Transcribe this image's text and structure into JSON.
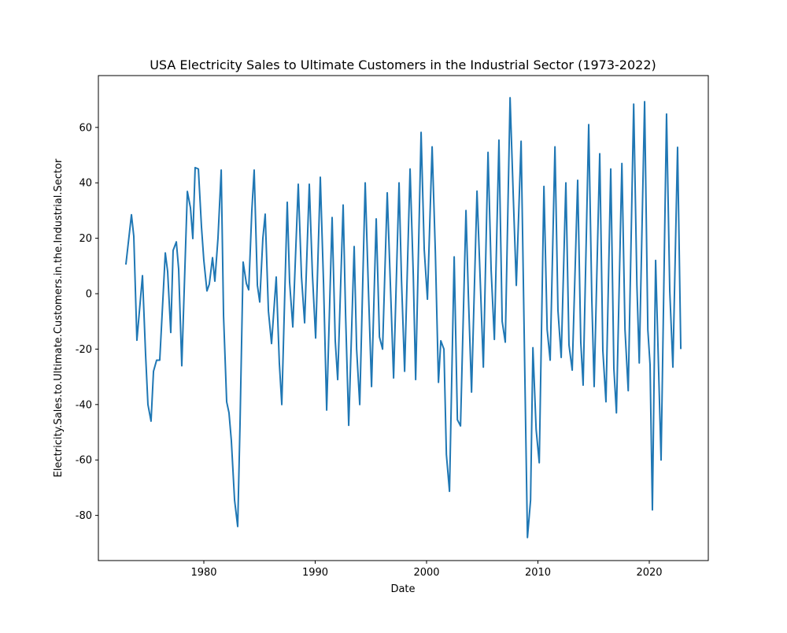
{
  "chart_data": {
    "type": "line",
    "title": "USA Electricity Sales to Ultimate Customers in the Industrial Sector (1973-2022)",
    "x_label": "Date",
    "y_label": "Electricity.Sales.to.Ultimate.Customers.in.the.Industrial.Sector",
    "xlim": [
      1970.53,
      2025.3
    ],
    "ylim": [
      -96.3,
      78.7
    ],
    "xticks": [
      1980,
      1990,
      2000,
      2010,
      2020
    ],
    "yticks": [
      -80,
      -60,
      -40,
      -20,
      0,
      20,
      40,
      60
    ],
    "grid": false,
    "series": [
      {
        "name": "Electricity.Sales.to.Ultimate.Customers.in.the.Industrial.Sector",
        "color": "#1f77b4",
        "x": [
          1973.0,
          1973.5,
          1973.71,
          1973.99,
          1974.49,
          1974.77,
          1974.98,
          1975.26,
          1975.48,
          1975.76,
          1976.04,
          1976.54,
          1976.75,
          1977.03,
          1977.24,
          1977.53,
          1977.74,
          1978.02,
          1978.52,
          1978.8,
          1979.01,
          1979.22,
          1979.51,
          1979.79,
          1980.0,
          1980.28,
          1980.49,
          1980.78,
          1980.99,
          1981.27,
          1981.56,
          1981.77,
          1982.05,
          1982.26,
          1982.47,
          1982.76,
          1983.04,
          1983.25,
          1983.53,
          1983.82,
          1984.03,
          1984.31,
          1984.52,
          1984.81,
          1985.02,
          1985.3,
          1985.51,
          1985.8,
          1986.08,
          1986.5,
          1986.78,
          1987.0,
          1987.49,
          1987.7,
          1987.99,
          1988.48,
          1988.77,
          1989.05,
          1989.47,
          1989.75,
          1990.04,
          1990.46,
          1990.75,
          1991.03,
          1991.52,
          1991.8,
          1992.02,
          1992.51,
          1992.73,
          1993.01,
          1993.5,
          1993.72,
          1994.0,
          1994.49,
          1994.78,
          1995.06,
          1995.48,
          1995.77,
          1996.05,
          1996.47,
          1996.76,
          1997.04,
          1997.53,
          1997.75,
          1998.03,
          1998.52,
          1998.81,
          1999.02,
          1999.51,
          1999.79,
          2000.08,
          2000.5,
          2000.79,
          2001.07,
          2001.28,
          2001.56,
          2001.78,
          2002.06,
          2002.48,
          2002.77,
          2003.05,
          2003.54,
          2003.75,
          2004.04,
          2004.53,
          2004.81,
          2005.1,
          2005.52,
          2005.8,
          2006.09,
          2006.5,
          2006.79,
          2007.07,
          2007.5,
          2007.78,
          2008.06,
          2008.49,
          2009.06,
          2009.34,
          2009.55,
          2009.84,
          2010.12,
          2010.54,
          2010.83,
          2011.1,
          2011.53,
          2011.8,
          2012.09,
          2012.51,
          2012.79,
          2013.08,
          2013.57,
          2013.85,
          2014.06,
          2014.56,
          2014.84,
          2015.05,
          2015.55,
          2015.83,
          2016.11,
          2016.54,
          2016.82,
          2017.05,
          2017.54,
          2017.82,
          2018.11,
          2018.6,
          2018.89,
          2019.1,
          2019.58,
          2019.87,
          2020.07,
          2020.28,
          2020.57,
          2021.06,
          2021.55,
          2021.84,
          2022.12,
          2022.54,
          2022.83
        ],
        "values": [
          10.5,
          28.5,
          20.7,
          -16.8,
          6.5,
          -22,
          -40,
          -46,
          -28,
          -24,
          -24,
          14.7,
          8,
          -14,
          15.6,
          18.7,
          8.8,
          -26,
          36.9,
          31,
          19.9,
          45.5,
          45,
          24,
          12,
          1,
          3.4,
          13,
          4.5,
          20,
          44.6,
          -8,
          -39,
          -43,
          -53,
          -74.5,
          -84,
          -47,
          11.4,
          3.7,
          1.4,
          30,
          44.6,
          3,
          -3,
          20,
          28.7,
          -6.3,
          -18,
          6,
          -25,
          -40,
          33,
          4.3,
          -12,
          39.5,
          6,
          -10.5,
          39.5,
          7,
          -16,
          42,
          3.7,
          -42,
          27.5,
          -17,
          -31,
          32,
          -7.7,
          -47.5,
          17,
          -20,
          -40,
          40,
          1.4,
          -33.5,
          27,
          -15.6,
          -20,
          36.4,
          2.3,
          -30.4,
          40,
          4.8,
          -28,
          45,
          6.5,
          -31,
          58.2,
          16,
          -2,
          53,
          15,
          -32,
          -17,
          -20,
          -58,
          -71.3,
          13.3,
          -45.5,
          -47.7,
          30,
          0,
          -35.5,
          37,
          6,
          -26.5,
          51,
          8.5,
          -16.5,
          55.4,
          -10,
          -17.5,
          70.7,
          36,
          3,
          55,
          -88,
          -74.5,
          -19.5,
          -49,
          -61,
          38.7,
          -13,
          -24,
          53,
          -6,
          -23,
          40,
          -18.5,
          -27.6,
          40.9,
          -17.6,
          -33,
          61,
          -2,
          -33.5,
          50.5,
          -20.5,
          -39,
          45,
          -27,
          -43,
          47,
          -13,
          -35,
          68.4,
          3,
          -25,
          69.3,
          -13,
          -25.6,
          -78,
          12,
          -60,
          64.8,
          1,
          -26.5,
          52.8,
          -20
        ]
      }
    ]
  }
}
